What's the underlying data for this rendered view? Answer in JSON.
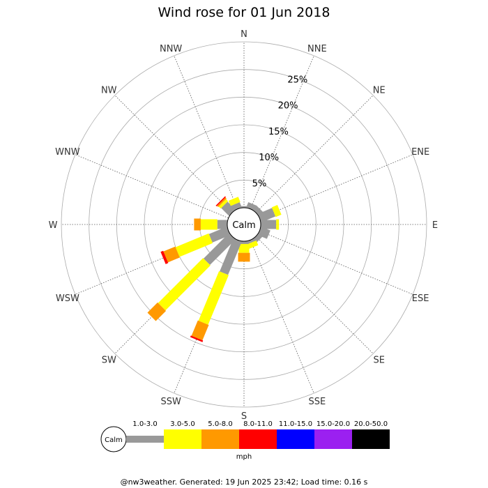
{
  "chart_data": {
    "type": "wind-rose",
    "title": "Wind rose for 01 Jun 2018",
    "directions": [
      "N",
      "NNE",
      "NE",
      "ENE",
      "E",
      "ESE",
      "SE",
      "SSE",
      "S",
      "SSW",
      "SW",
      "WSW",
      "W",
      "WNW",
      "NW",
      "NNW"
    ],
    "radial_ticks": [
      5,
      10,
      15,
      20,
      25
    ],
    "radial_tick_labels": [
      "5%",
      "10%",
      "15%",
      "20%",
      "25%"
    ],
    "radial_max": 30,
    "calm_label": "Calm",
    "speed_bins": [
      "1.0-3.0",
      "3.0-5.0",
      "5.0-8.0",
      "8.0-11.0",
      "11.0-15.0",
      "15.0-20.0",
      "20.0-50.0"
    ],
    "bin_colors": [
      "#999999",
      "#ffff00",
      "#ff9900",
      "#ff0000",
      "#0000ff",
      "#9b20f0",
      "#000000"
    ],
    "unit_label": "mph",
    "series": [
      {
        "direction": "N",
        "values": [
          0.3,
          0,
          0,
          0,
          0,
          0,
          0
        ]
      },
      {
        "direction": "NNE",
        "values": [
          1.0,
          0,
          0,
          0,
          0,
          0,
          0
        ]
      },
      {
        "direction": "NE",
        "values": [
          1.0,
          0,
          0,
          0,
          0,
          0,
          0
        ]
      },
      {
        "direction": "ENE",
        "values": [
          2.8,
          1.1,
          0,
          0,
          0,
          0,
          0
        ]
      },
      {
        "direction": "E",
        "values": [
          2.8,
          0.5,
          0,
          0,
          0,
          0,
          0
        ]
      },
      {
        "direction": "ESE",
        "values": [
          1.8,
          0,
          0,
          0,
          0,
          0,
          0
        ]
      },
      {
        "direction": "SE",
        "values": [
          0.9,
          0,
          0,
          0,
          0,
          0,
          0
        ]
      },
      {
        "direction": "SSE",
        "values": [
          0.5,
          0.9,
          0,
          0,
          0,
          0,
          0
        ]
      },
      {
        "direction": "S",
        "values": [
          0.5,
          1.6,
          1.6,
          0,
          0,
          0,
          0
        ]
      },
      {
        "direction": "SSW",
        "values": [
          6.5,
          9.7,
          3.0,
          0.3,
          0,
          0,
          0
        ]
      },
      {
        "direction": "SW",
        "values": [
          6.5,
          11.5,
          2.6,
          0,
          0,
          0,
          0
        ]
      },
      {
        "direction": "WSW",
        "values": [
          3.5,
          6.5,
          2.3,
          0.5,
          0,
          0,
          0
        ]
      },
      {
        "direction": "W",
        "values": [
          1.8,
          3.0,
          1.2,
          0,
          0,
          0,
          0
        ]
      },
      {
        "direction": "WNW",
        "values": [
          0,
          0,
          0,
          0,
          0,
          0,
          0
        ]
      },
      {
        "direction": "NW",
        "values": [
          2.0,
          0.5,
          0.3,
          0.2,
          0,
          0,
          0
        ]
      },
      {
        "direction": "NNW",
        "values": [
          1.0,
          1.0,
          0,
          0,
          0,
          0,
          0
        ]
      }
    ],
    "grid": true
  },
  "footer": "@nw3weather. Generated: 19 Jun 2025 23:42; Load time: 0.16 s"
}
